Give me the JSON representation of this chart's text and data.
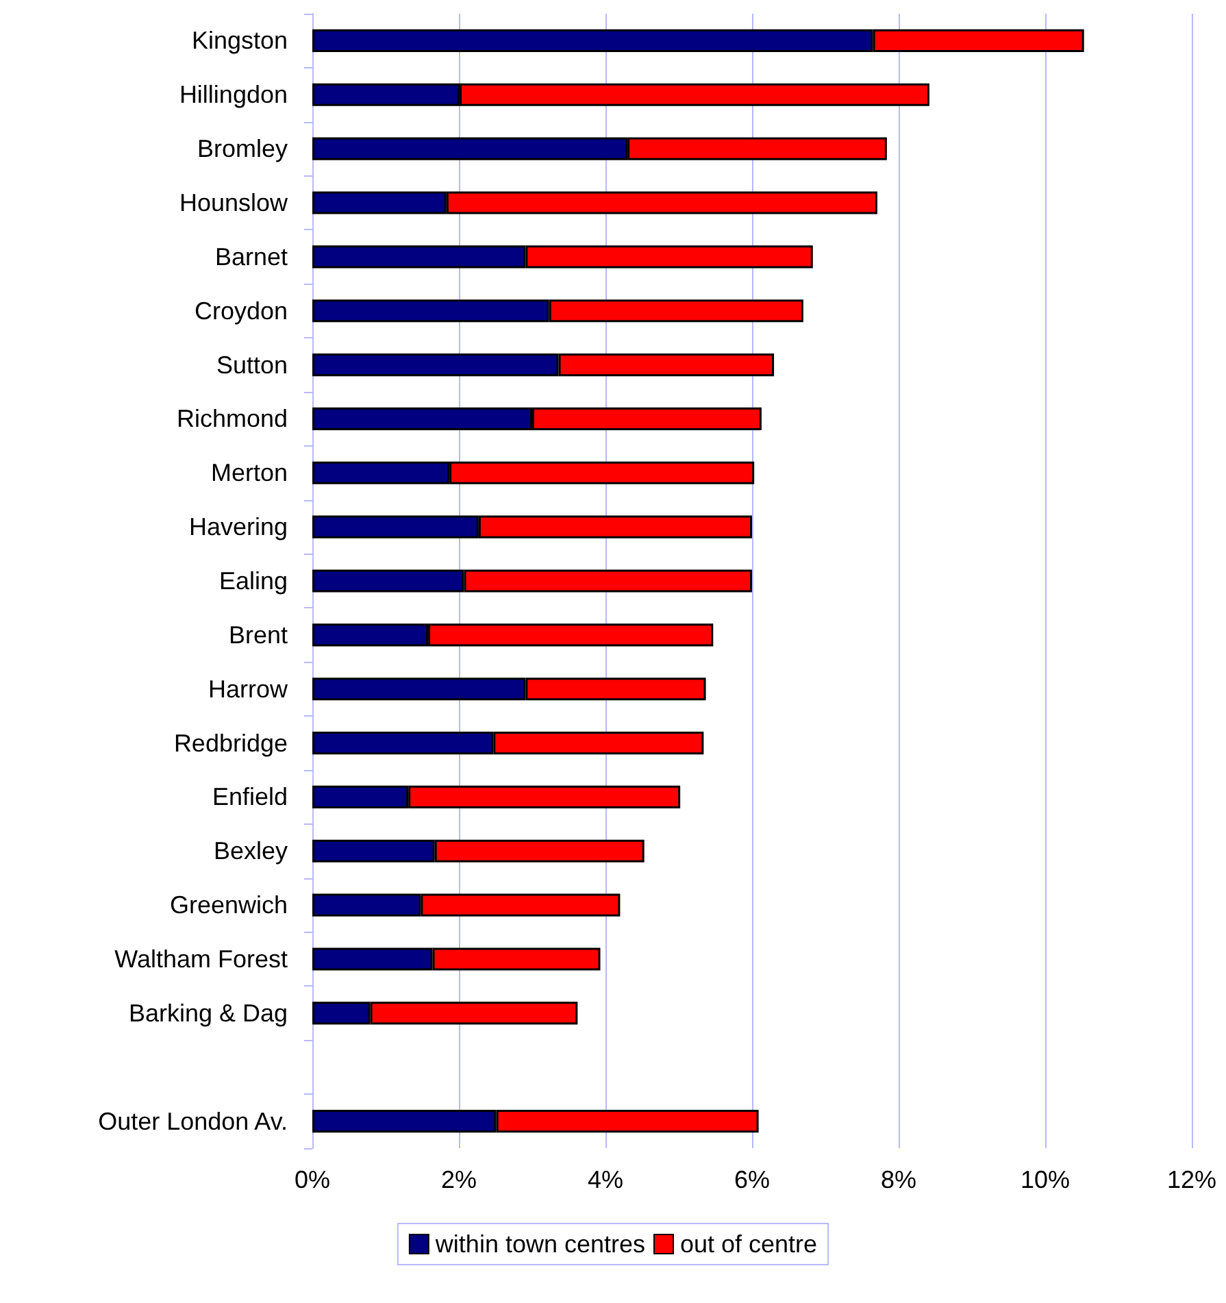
{
  "chart_data": {
    "type": "bar",
    "orientation": "horizontal",
    "stacked": true,
    "categories": [
      "Kingston",
      "Hillingdon",
      "Bromley",
      "Hounslow",
      "Barnet",
      "Croydon",
      "Sutton",
      "Richmond",
      "Merton",
      "Havering",
      "Ealing",
      "Brent",
      "Harrow",
      "Redbridge",
      "Enfield",
      "Bexley",
      "Greenwich",
      "Waltham Forest",
      "Barking & Dag",
      null,
      "Outer London Av."
    ],
    "series": [
      {
        "name": "within town centres",
        "color": "#000080",
        "values": [
          7.65,
          2.01,
          4.3,
          1.83,
          2.91,
          3.23,
          3.36,
          3.0,
          1.87,
          2.27,
          2.07,
          1.58,
          2.91,
          2.47,
          1.31,
          1.67,
          1.48,
          1.64,
          0.79,
          null,
          2.51
        ]
      },
      {
        "name": "out of centre",
        "color": "#ff0000",
        "values": [
          2.88,
          6.41,
          3.54,
          5.88,
          3.92,
          3.47,
          2.94,
          3.13,
          4.16,
          3.73,
          3.93,
          3.89,
          2.46,
          2.87,
          3.71,
          2.86,
          2.72,
          2.29,
          2.83,
          null,
          3.58
        ]
      }
    ],
    "xlim": [
      0,
      12
    ],
    "xticks": [
      {
        "value": 0,
        "label": "0%"
      },
      {
        "value": 2,
        "label": "2%"
      },
      {
        "value": 4,
        "label": "4%"
      },
      {
        "value": 6,
        "label": "6%"
      },
      {
        "value": 8,
        "label": "8%"
      },
      {
        "value": 10,
        "label": "10%"
      },
      {
        "value": 12,
        "label": "12%"
      }
    ],
    "grid": "x",
    "legend": "bottom"
  }
}
